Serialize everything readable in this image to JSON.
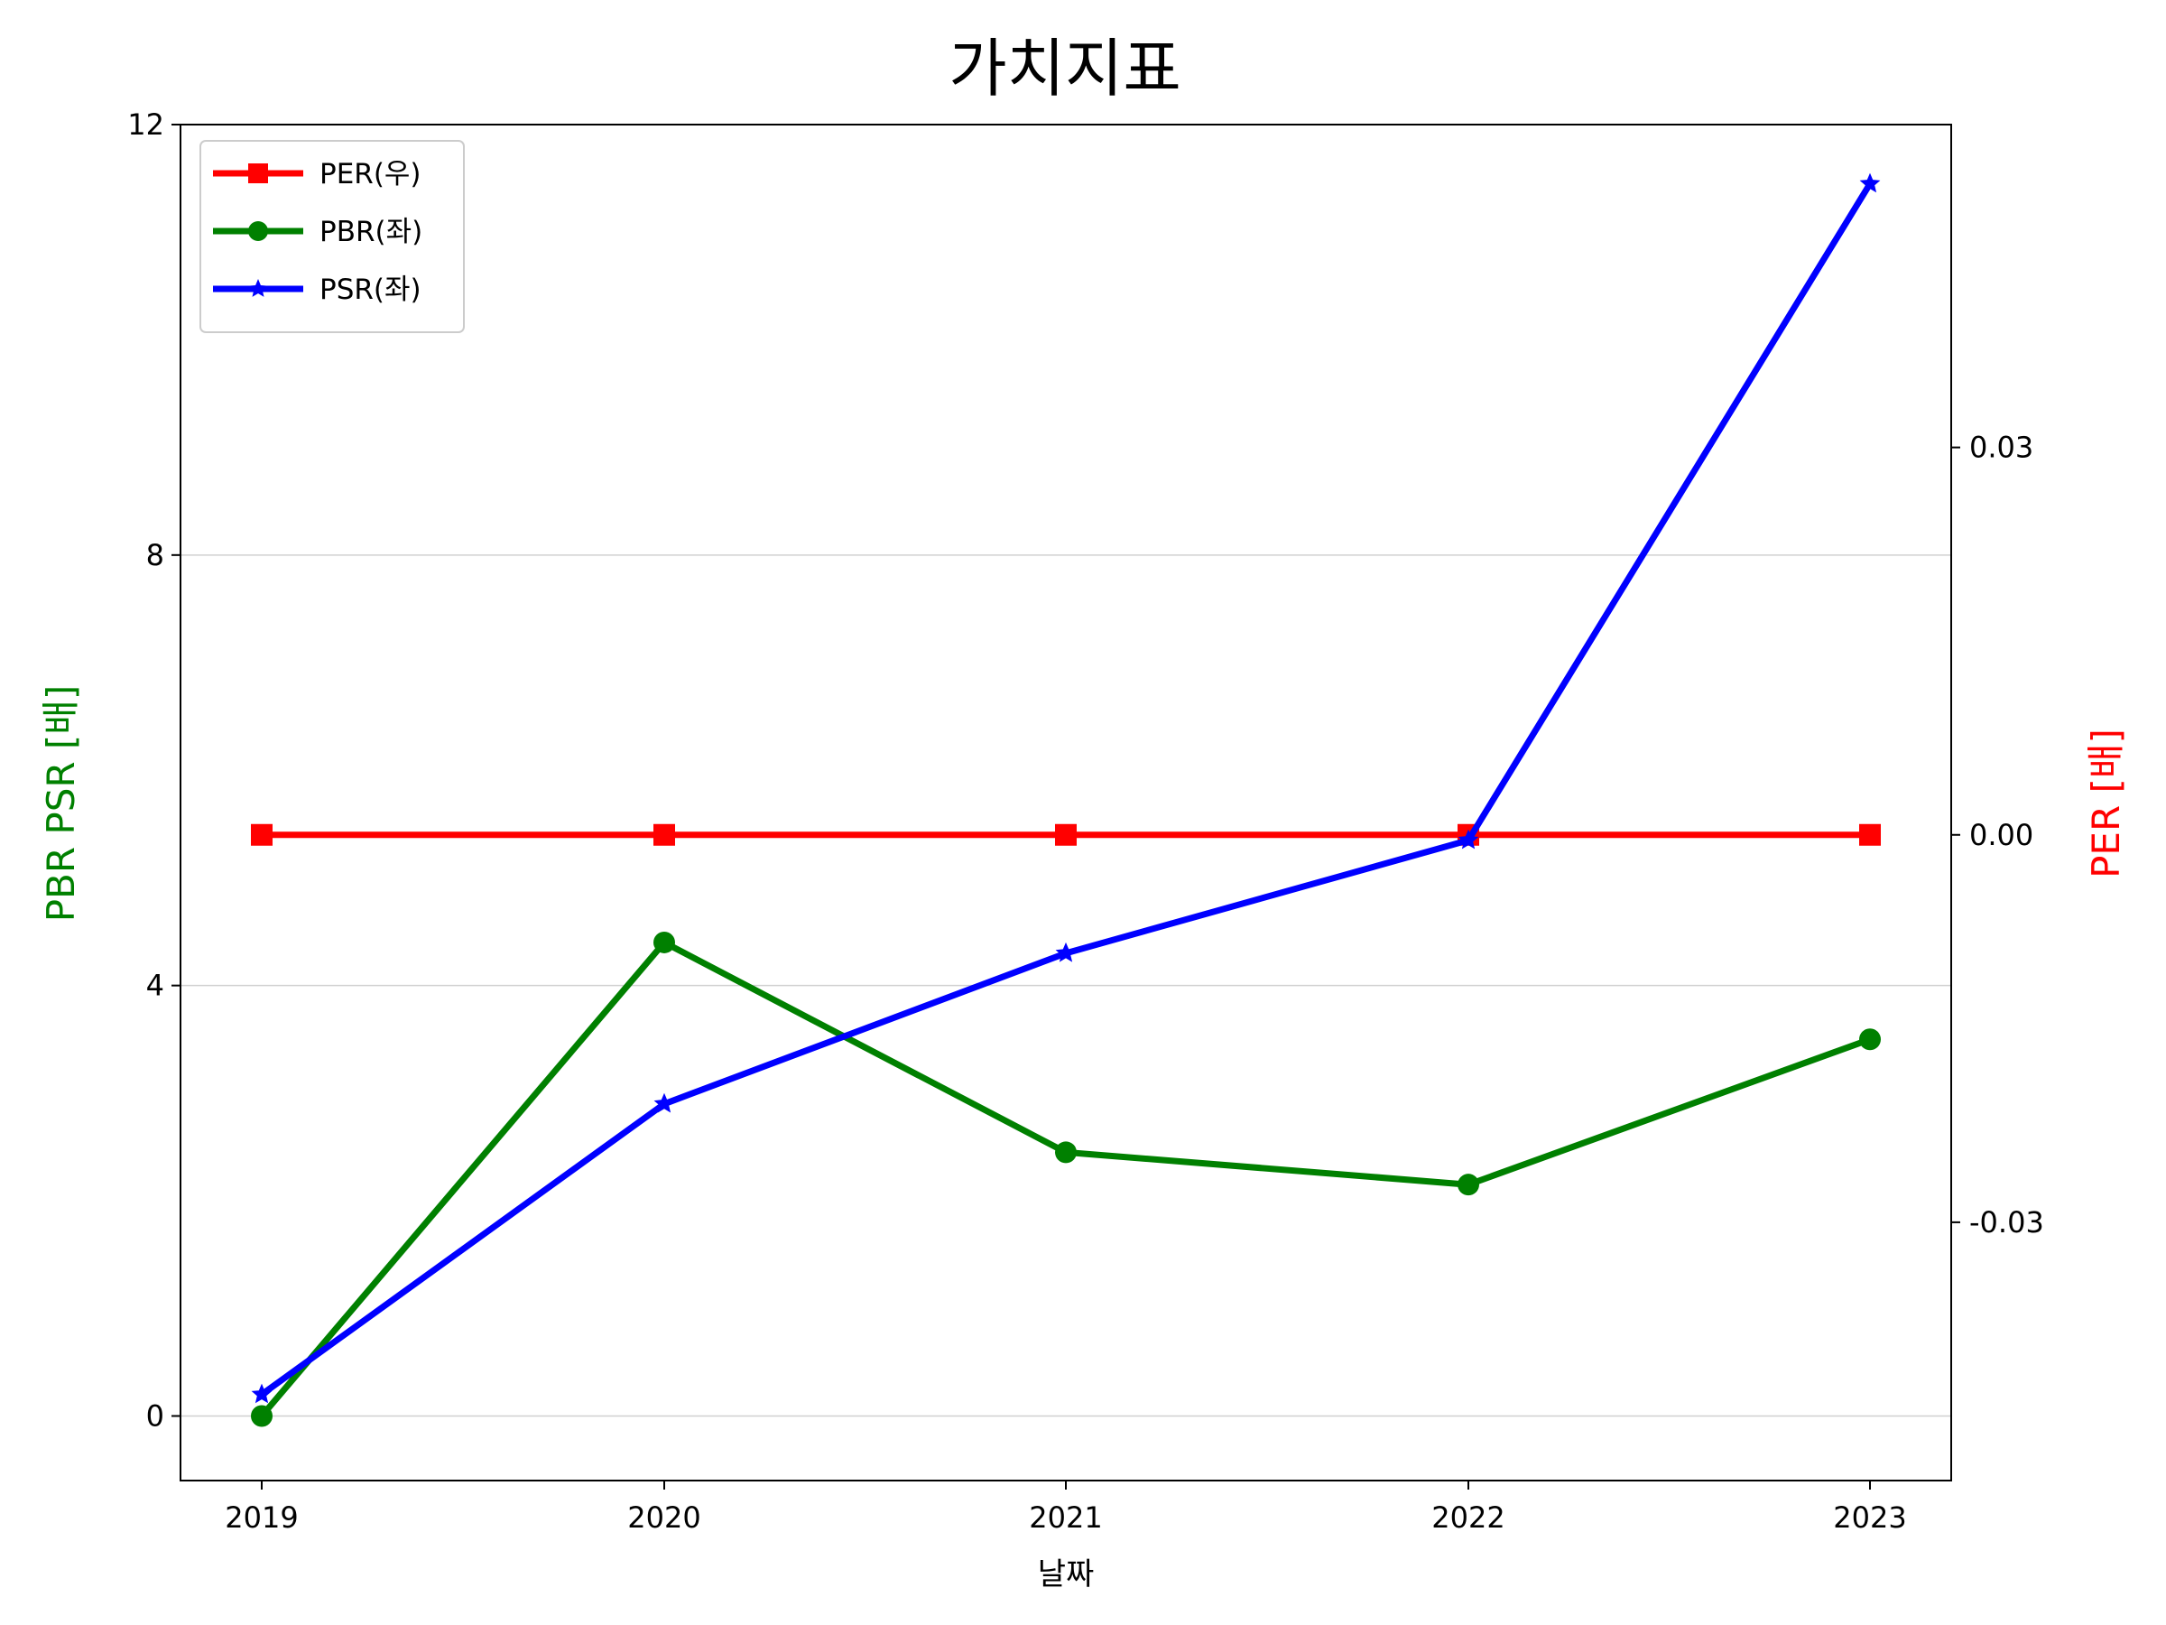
{
  "chart_data": {
    "type": "line",
    "title": "가치지표",
    "xlabel": "날짜",
    "ylabel_left": "PBR PSR [배]",
    "ylabel_right": "PER [배]",
    "categories": [
      "2019",
      "2020",
      "2021",
      "2022",
      "2023"
    ],
    "ylim_left": [
      -0.6,
      12
    ],
    "yticks_left": [
      0,
      4,
      8,
      12
    ],
    "ytick_labels_left": [
      "0",
      "4",
      "8",
      "12"
    ],
    "ylim_right": [
      -0.05,
      0.055
    ],
    "yticks_right": [
      0.03,
      0.0,
      -0.03
    ],
    "ytick_labels_right": [
      "0.03",
      "0.00",
      "-0.03"
    ],
    "grid": "horizontal, left axis",
    "legend_position": "top-left",
    "series": [
      {
        "name": "PER(우)",
        "axis": "right",
        "marker": "square",
        "color": "#ff0000",
        "values": [
          0,
          0,
          0,
          0,
          0
        ]
      },
      {
        "name": "PBR(좌)",
        "axis": "left",
        "marker": "circle",
        "color": "#008000",
        "values": [
          0.0,
          4.4,
          2.45,
          2.15,
          3.5
        ]
      },
      {
        "name": "PSR(좌)",
        "axis": "left",
        "marker": "star",
        "color": "#0000ff",
        "values": [
          0.2,
          2.9,
          4.3,
          5.35,
          11.45
        ]
      }
    ]
  }
}
